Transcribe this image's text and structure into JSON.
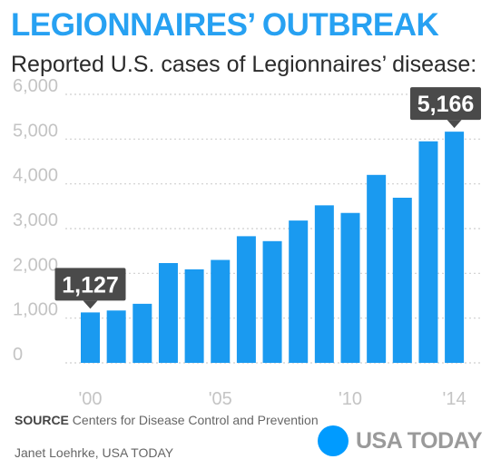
{
  "title": "LEGIONNAIRES’ OUTBREAK",
  "subtitle": "Reported U.S. cases of Legionnaires’ disease:",
  "chart_data": {
    "type": "bar",
    "categories": [
      "2000",
      "2001",
      "2002",
      "2003",
      "2004",
      "2005",
      "2006",
      "2007",
      "2008",
      "2009",
      "2010",
      "2011",
      "2012",
      "2013",
      "2014"
    ],
    "values": [
      1127,
      1170,
      1320,
      2230,
      2090,
      2300,
      2830,
      2720,
      3180,
      3520,
      3350,
      4200,
      3690,
      4950,
      5166
    ],
    "x_tick_labels": [
      {
        "category": "2000",
        "label": "'00"
      },
      {
        "category": "2005",
        "label": "'05"
      },
      {
        "category": "2010",
        "label": "'10"
      },
      {
        "category": "2014",
        "label": "'14"
      }
    ],
    "y_ticks": [
      {
        "value": 0,
        "label": "0"
      },
      {
        "value": 1000,
        "label": "1,000"
      },
      {
        "value": 2000,
        "label": "2,000"
      },
      {
        "value": 3000,
        "label": "3,000"
      },
      {
        "value": 4000,
        "label": "4,000"
      },
      {
        "value": 5000,
        "label": "5,000"
      },
      {
        "value": 6000,
        "label": "6,000"
      }
    ],
    "ylim": [
      0,
      6000
    ],
    "grid": "dotted horizontal",
    "annotations": [
      {
        "category": "2000",
        "text": "1,127"
      },
      {
        "category": "2014",
        "text": "5,166"
      }
    ],
    "xlabel": "",
    "ylabel": ""
  },
  "colors": {
    "bar": "#1a9af0",
    "title": "#27a1f2",
    "callout": "#4a4a4a",
    "axis_text": "#c4c4c4",
    "grid": "#cfcfcf"
  },
  "footer": {
    "source_label": "SOURCE",
    "source_text": " Centers for Disease Control and Prevention",
    "credit": "Janet Loehrke, USA TODAY"
  },
  "logo": {
    "text": "USA TODAY"
  }
}
